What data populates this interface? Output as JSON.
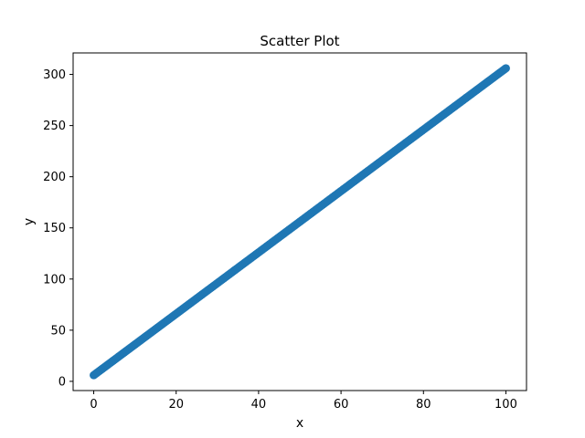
{
  "chart_data": {
    "type": "scatter",
    "title": "Scatter Plot",
    "xlabel": "x",
    "ylabel": "y",
    "xlim": [
      -5,
      105
    ],
    "ylim": [
      -9,
      321
    ],
    "xticks": [
      0,
      20,
      40,
      60,
      80,
      100
    ],
    "yticks": [
      0,
      50,
      100,
      150,
      200,
      250,
      300
    ],
    "grid": false,
    "color": "#1f77b4",
    "relationship": {
      "slope": 3,
      "intercept": 6
    },
    "x_range": [
      0,
      100
    ],
    "point_count": 300
  }
}
